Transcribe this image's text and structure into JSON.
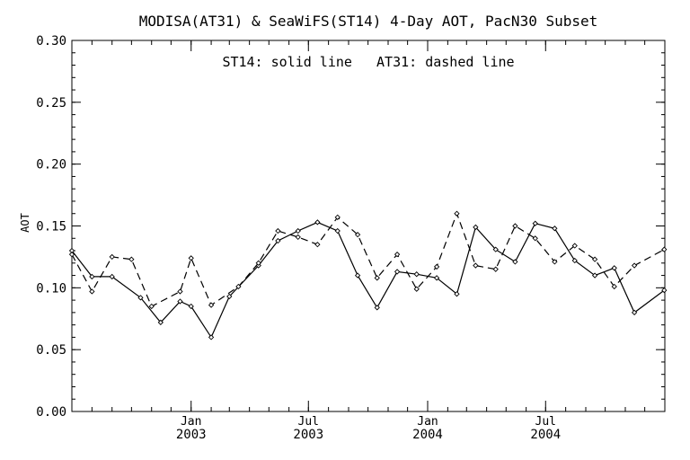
{
  "chart_data": {
    "type": "line",
    "title": "MODISA(AT31) & SeaWiFS(ST14) 4-Day AOT, PacN30 Subset",
    "annotation": "ST14: solid line   AT31: dashed line",
    "xlabel": "",
    "ylabel": "AOT",
    "ylim": [
      0.0,
      0.3
    ],
    "xlim": [
      "2002-07-01",
      "2005-01-01"
    ],
    "grid": false,
    "legend": "none",
    "y_ticks": [
      "0.00",
      "0.05",
      "0.10",
      "0.15",
      "0.20",
      "0.25",
      "0.30"
    ],
    "x_ticks": [
      {
        "date": "2003-01-01",
        "month": "Jan",
        "year": "2003"
      },
      {
        "date": "2003-07-01",
        "month": "Jul",
        "year": "2003"
      },
      {
        "date": "2004-01-01",
        "month": "Jan",
        "year": "2004"
      },
      {
        "date": "2004-07-01",
        "month": "Jul",
        "year": "2004"
      }
    ],
    "series": [
      {
        "name": "ST14",
        "style": "solid",
        "color": "#000000",
        "points": [
          [
            "2002-07-01",
            0.13
          ],
          [
            "2002-08-01",
            0.109
          ],
          [
            "2002-09-01",
            0.109
          ],
          [
            "2002-10-15",
            0.092
          ],
          [
            "2002-11-15",
            0.072
          ],
          [
            "2002-12-15",
            0.089
          ],
          [
            "2003-01-01",
            0.085
          ],
          [
            "2003-02-01",
            0.06
          ],
          [
            "2003-03-01",
            0.093
          ],
          [
            "2003-04-15",
            0.118
          ],
          [
            "2003-05-15",
            0.138
          ],
          [
            "2003-06-15",
            0.146
          ],
          [
            "2003-07-15",
            0.153
          ],
          [
            "2003-08-15",
            0.146
          ],
          [
            "2003-09-15",
            0.11
          ],
          [
            "2003-10-15",
            0.084
          ],
          [
            "2003-11-15",
            0.113
          ],
          [
            "2003-12-15",
            0.111
          ],
          [
            "2004-01-15",
            0.108
          ],
          [
            "2004-02-15",
            0.095
          ],
          [
            "2004-03-15",
            0.149
          ],
          [
            "2004-04-15",
            0.131
          ],
          [
            "2004-05-15",
            0.121
          ],
          [
            "2004-06-15",
            0.152
          ],
          [
            "2004-07-15",
            0.148
          ],
          [
            "2004-08-15",
            0.122
          ],
          [
            "2004-09-15",
            0.11
          ],
          [
            "2004-10-15",
            0.116
          ],
          [
            "2004-11-15",
            0.08
          ],
          [
            "2004-12-31",
            0.098
          ]
        ]
      },
      {
        "name": "AT31",
        "style": "dashed",
        "color": "#000000",
        "points": [
          [
            "2002-07-01",
            0.127
          ],
          [
            "2002-08-01",
            0.097
          ],
          [
            "2002-09-01",
            0.125
          ],
          [
            "2002-10-01",
            0.123
          ],
          [
            "2002-11-01",
            0.085
          ],
          [
            "2002-12-15",
            0.097
          ],
          [
            "2003-01-01",
            0.124
          ],
          [
            "2003-02-01",
            0.086
          ],
          [
            "2003-03-15",
            0.101
          ],
          [
            "2003-04-15",
            0.12
          ],
          [
            "2003-05-15",
            0.146
          ],
          [
            "2003-06-15",
            0.141
          ],
          [
            "2003-07-15",
            0.135
          ],
          [
            "2003-08-15",
            0.157
          ],
          [
            "2003-09-15",
            0.143
          ],
          [
            "2003-10-15",
            0.108
          ],
          [
            "2003-11-15",
            0.127
          ],
          [
            "2003-12-15",
            0.099
          ],
          [
            "2004-01-15",
            0.117
          ],
          [
            "2004-02-15",
            0.16
          ],
          [
            "2004-03-15",
            0.118
          ],
          [
            "2004-04-15",
            0.115
          ],
          [
            "2004-05-15",
            0.15
          ],
          [
            "2004-06-15",
            0.14
          ],
          [
            "2004-07-15",
            0.121
          ],
          [
            "2004-08-15",
            0.134
          ],
          [
            "2004-09-15",
            0.123
          ],
          [
            "2004-10-15",
            0.101
          ],
          [
            "2004-11-15",
            0.118
          ],
          [
            "2004-12-31",
            0.131
          ]
        ]
      }
    ]
  }
}
